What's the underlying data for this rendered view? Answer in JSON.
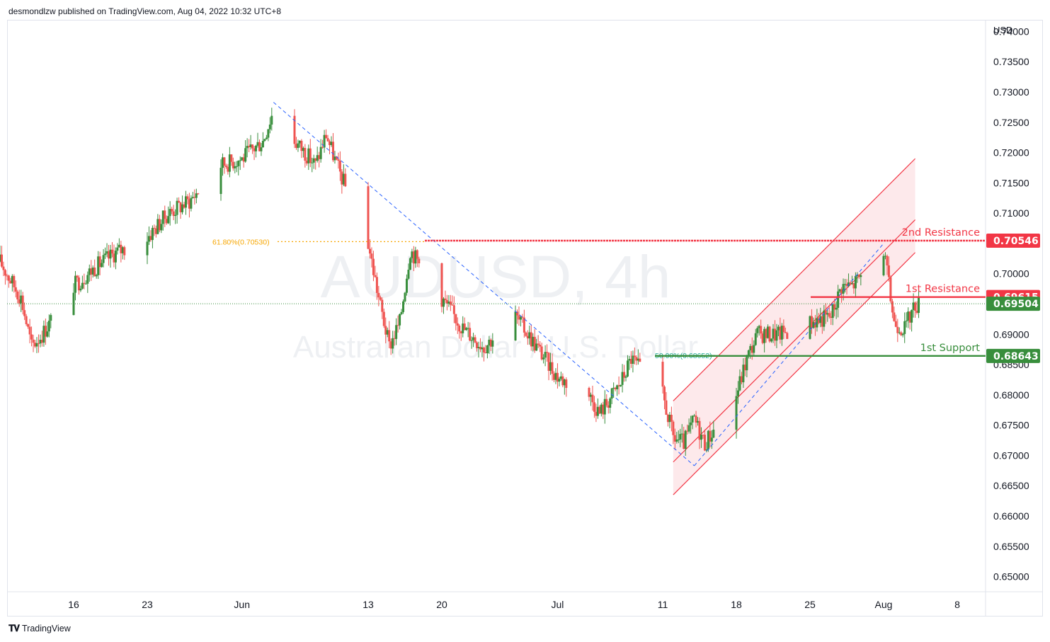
{
  "header": {
    "publisher_line": "desmondlzw published on TradingView.com, Aug 04, 2022 10:32 UTC+8"
  },
  "footer": {
    "brand": "TradingView"
  },
  "watermark": {
    "symbol": "AUDUSD, 4h",
    "description": "Australian Dollar / U.S. Dollar"
  },
  "colors": {
    "up": "#388e3c",
    "down": "#ef5350",
    "resistance": "#f23645",
    "support": "#388e3c",
    "channel_fill": "#fce4e6",
    "trend_dash": "#2962ff",
    "fib_618": "#f7a600",
    "fib_50": "#22ab94",
    "grid": "#f0f3fa",
    "current_price": "#388e3c"
  },
  "chart_data": {
    "type": "candlestick",
    "symbol": "AUDUSD",
    "timeframe": "4h",
    "currency": "USD",
    "y_axis": {
      "label": "USD",
      "ticks": [
        "0.74000",
        "0.73500",
        "0.73000",
        "0.72500",
        "0.72000",
        "0.71500",
        "0.71000",
        "0.70500",
        "0.70000",
        "0.69500",
        "0.69000",
        "0.68500",
        "0.68000",
        "0.67500",
        "0.67000",
        "0.66500",
        "0.66000",
        "0.65500",
        "0.65000"
      ],
      "ylim": [
        0.6475,
        0.7418
      ]
    },
    "x_axis": {
      "ticks": [
        "16",
        "23",
        "Jun",
        "13",
        "20",
        "Jul",
        "11",
        "18",
        "25",
        "Aug",
        "8"
      ],
      "tick_dates": [
        "2022-05-16",
        "2022-05-23",
        "2022-06-01",
        "2022-06-13",
        "2022-06-20",
        "2022-07-01",
        "2022-07-11",
        "2022-07-18",
        "2022-07-25",
        "2022-08-01",
        "2022-08-08"
      ]
    },
    "price_path": [
      [
        "2022-05-09",
        0.702
      ],
      [
        "2022-05-11",
        0.696
      ],
      [
        "2022-05-12",
        0.688
      ],
      [
        "2022-05-13",
        0.69
      ],
      [
        "2022-05-16",
        0.698
      ],
      [
        "2022-05-18",
        0.701
      ],
      [
        "2022-05-20",
        0.7035
      ],
      [
        "2022-05-23",
        0.706
      ],
      [
        "2022-05-25",
        0.71
      ],
      [
        "2022-05-27",
        0.712
      ],
      [
        "2022-05-30",
        0.718
      ],
      [
        "2022-06-01",
        0.719
      ],
      [
        "2022-06-03",
        0.722
      ],
      [
        "2022-06-04",
        0.727
      ],
      [
        "2022-06-06",
        0.722
      ],
      [
        "2022-06-08",
        0.718
      ],
      [
        "2022-06-09",
        0.723
      ],
      [
        "2022-06-10",
        0.718
      ],
      [
        "2022-06-13",
        0.705
      ],
      [
        "2022-06-14",
        0.696
      ],
      [
        "2022-06-15",
        0.688
      ],
      [
        "2022-06-16",
        0.692
      ],
      [
        "2022-06-17",
        0.704
      ],
      [
        "2022-06-20",
        0.696
      ],
      [
        "2022-06-22",
        0.691
      ],
      [
        "2022-06-24",
        0.688
      ],
      [
        "2022-06-27",
        0.693
      ],
      [
        "2022-06-29",
        0.688
      ],
      [
        "2022-07-01",
        0.683
      ],
      [
        "2022-07-04",
        0.68
      ],
      [
        "2022-07-05",
        0.677
      ],
      [
        "2022-07-07",
        0.682
      ],
      [
        "2022-07-08",
        0.686
      ],
      [
        "2022-07-11",
        0.68
      ],
      [
        "2022-07-12",
        0.673
      ],
      [
        "2022-07-13",
        0.672
      ],
      [
        "2022-07-14",
        0.676
      ],
      [
        "2022-07-15",
        0.672
      ],
      [
        "2022-07-18",
        0.68
      ],
      [
        "2022-07-19",
        0.686
      ],
      [
        "2022-07-20",
        0.69
      ],
      [
        "2022-07-22",
        0.69
      ],
      [
        "2022-07-25",
        0.692
      ],
      [
        "2022-07-27",
        0.693
      ],
      [
        "2022-07-28",
        0.698
      ],
      [
        "2022-07-29",
        0.698
      ],
      [
        "2022-08-01",
        0.704
      ],
      [
        "2022-08-02",
        0.692
      ],
      [
        "2022-08-03",
        0.691
      ],
      [
        "2022-08-04",
        0.695
      ]
    ],
    "levels": [
      {
        "name": "2nd Resistance",
        "price": "0.70546",
        "kind": "resistance"
      },
      {
        "name": "1st Resistance",
        "price": "0.69615",
        "kind": "resistance"
      },
      {
        "name": "1st Support",
        "price": "0.68643",
        "kind": "support"
      }
    ],
    "current_price": "0.69504",
    "fib_labels": [
      {
        "text": "61.80%(0.70530)",
        "price": 0.7053
      },
      {
        "text": "50.00%(0.68652)",
        "price": 0.68652
      }
    ],
    "ascending_channel": {
      "upper": [
        [
          "2022-07-12",
          0.679
        ],
        [
          "2022-08-04",
          0.719
        ]
      ],
      "lower": [
        [
          "2022-07-12",
          0.6635
        ],
        [
          "2022-08-04",
          0.7035
        ]
      ]
    },
    "fib_swing_1": [
      [
        "2022-06-04",
        0.7283
      ],
      [
        "2022-07-14",
        0.6683
      ]
    ],
    "fib_swing_2": [
      [
        "2022-07-14",
        0.6683
      ],
      [
        "2022-08-01",
        0.705
      ]
    ]
  }
}
